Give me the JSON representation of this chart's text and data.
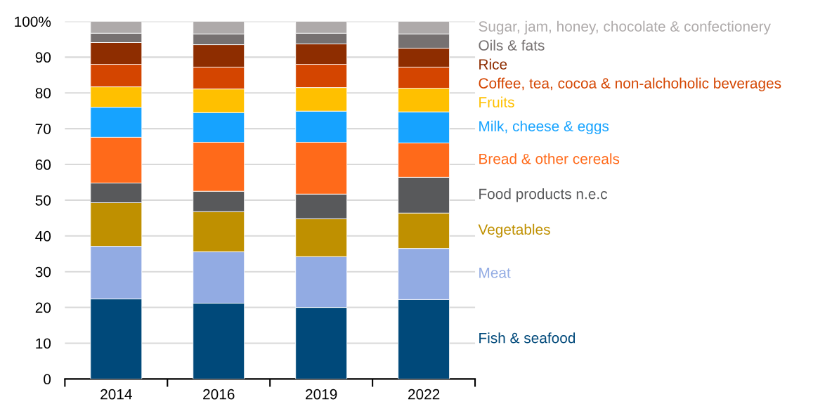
{
  "chart_data": {
    "type": "bar",
    "stacked": true,
    "categories": [
      "2014",
      "2016",
      "2019",
      "2022"
    ],
    "series": [
      {
        "name": "Fish & seafood",
        "color": "#00497a",
        "values": [
          22.4,
          21.2,
          20.0,
          22.2
        ]
      },
      {
        "name": "Meat",
        "color": "#92abe3",
        "values": [
          14.7,
          14.4,
          14.2,
          14.3
        ]
      },
      {
        "name": "Vegetables",
        "color": "#bf9000",
        "values": [
          12.2,
          11.2,
          10.6,
          9.9
        ]
      },
      {
        "name": "Food products n.e.c",
        "color": "#58595b",
        "values": [
          5.5,
          5.7,
          6.9,
          10.0
        ]
      },
      {
        "name": "Bread & other cereals",
        "color": "#ff6a1a",
        "values": [
          12.8,
          13.7,
          14.5,
          9.6
        ]
      },
      {
        "name": "Milk, cheese & eggs",
        "color": "#16a3ff",
        "values": [
          8.4,
          8.3,
          8.7,
          8.7
        ]
      },
      {
        "name": "Fruits",
        "color": "#ffc000",
        "values": [
          5.7,
          6.6,
          6.6,
          6.6
        ]
      },
      {
        "name": "Coffee, tea, cocoa & non-alchoholic beverages",
        "color": "#d44500",
        "values": [
          6.3,
          6.1,
          6.5,
          5.9
        ]
      },
      {
        "name": "Rice",
        "color": "#8e2d00",
        "values": [
          6.1,
          6.3,
          5.7,
          5.3
        ]
      },
      {
        "name": "Oils & fats",
        "color": "#767171",
        "values": [
          2.6,
          3.0,
          3.0,
          4.0
        ]
      },
      {
        "name": "Sugar, jam, honey, chocolate & confectionery",
        "color": "#aeaaaa",
        "values": [
          3.3,
          3.5,
          3.3,
          3.5
        ]
      }
    ],
    "ylim": [
      0,
      100
    ],
    "yticks": [
      0,
      10,
      20,
      30,
      40,
      50,
      60,
      70,
      80,
      90,
      {
        "value": 100,
        "label": "100%"
      }
    ],
    "grid": "y",
    "legend": false
  }
}
